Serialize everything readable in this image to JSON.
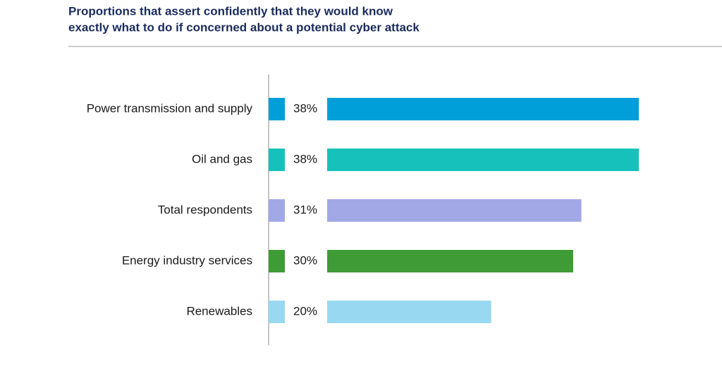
{
  "chart_data": {
    "type": "bar",
    "title": [
      "Proportions that assert confidently that they would know",
      "exactly what to do if concerned about a potential cyber attack"
    ],
    "categories": [
      "Power transmission and supply",
      "Oil and gas",
      "Total respondents",
      "Energy industry services",
      "Renewables"
    ],
    "values": [
      38,
      38,
      31,
      30,
      20
    ],
    "value_labels": [
      "38%",
      "38%",
      "31%",
      "30%",
      "20%"
    ],
    "colors": [
      "#009fda",
      "#17c1bb",
      "#a2a8e6",
      "#3f9b35",
      "#98d8f1"
    ]
  }
}
